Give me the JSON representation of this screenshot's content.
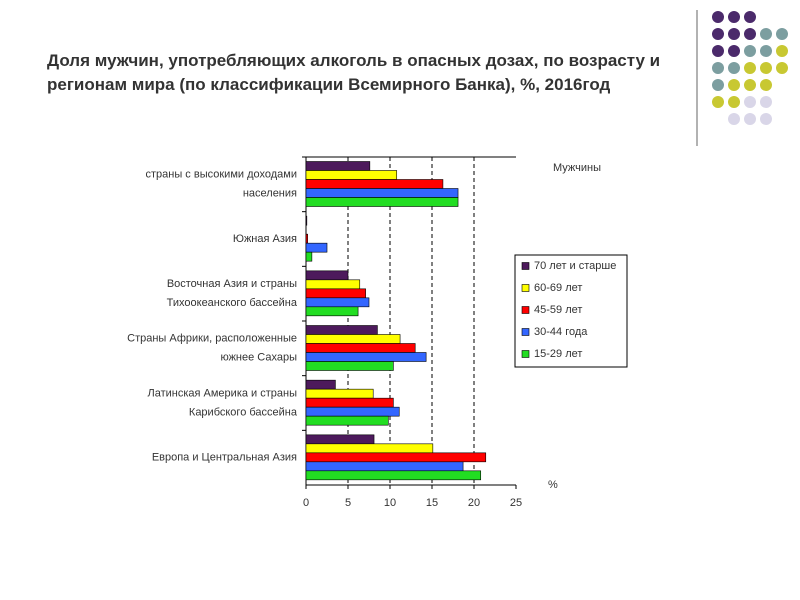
{
  "chart_data": {
    "type": "bar",
    "orientation": "horizontal",
    "title": "Доля мужчин, употребляющих алкоголь в опасных дозах, по возрасту и регионам мира (по классификации Всемирного Банка), %, 2016год",
    "subtitle": "Мужчины",
    "x_label": "%",
    "categories": [
      [
        "страны с высокими доходами",
        "населения"
      ],
      [
        "Южная Азия"
      ],
      [
        "Восточная Азия и страны",
        "Тихоокеанского бассейна"
      ],
      [
        "Страны Африки, расположенные",
        "южнее Сахары"
      ],
      [
        "Латинская Америка и страны",
        "Карибского бассейна"
      ],
      [
        "Европа и Центральная Азия"
      ]
    ],
    "series": [
      {
        "name": "70 лет и старше",
        "color": "#4d1a5c",
        "values": [
          7.6,
          0.1,
          5.0,
          8.5,
          3.5,
          8.1
        ]
      },
      {
        "name": "60-69 лет",
        "color": "#ffff00",
        "values": [
          10.8,
          0.0,
          6.4,
          11.2,
          8.0,
          15.1
        ]
      },
      {
        "name": "45-59 лет",
        "color": "#ff0000",
        "values": [
          16.3,
          0.2,
          7.1,
          13.0,
          10.4,
          21.4
        ]
      },
      {
        "name": "30-44 года",
        "color": "#3366ff",
        "values": [
          18.1,
          2.5,
          7.5,
          14.3,
          11.1,
          18.7
        ]
      },
      {
        "name": "15-29 лет",
        "color": "#22dd22",
        "values": [
          18.1,
          0.7,
          6.2,
          10.4,
          9.8,
          20.8
        ]
      }
    ],
    "xlim": [
      0,
      25
    ],
    "xticks": [
      0,
      5,
      10,
      15,
      20,
      25
    ],
    "grid": true
  }
}
